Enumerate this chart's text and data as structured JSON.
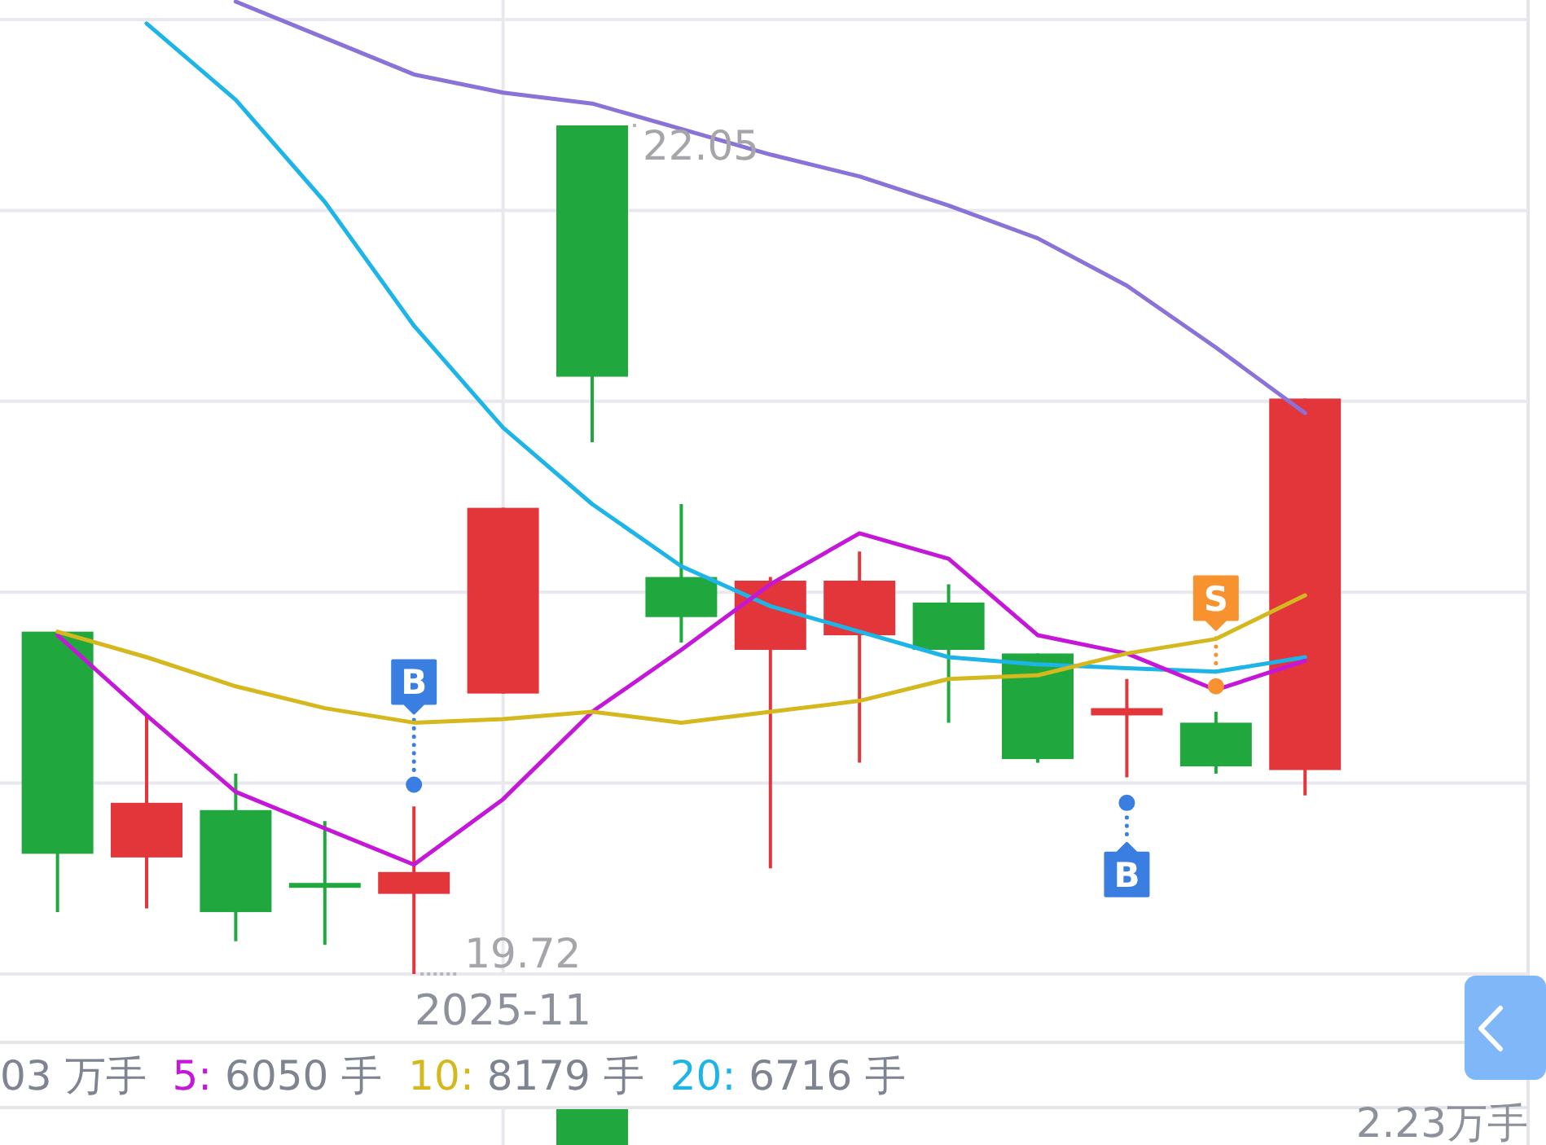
{
  "chart_data": [
    {
      "type": "candlestick",
      "categories": [
        null,
        null,
        null,
        null,
        null,
        "2025-11",
        null,
        null,
        null,
        null,
        null,
        null,
        null,
        null,
        null
      ],
      "ohlc": [
        [
          20.66,
          20.66,
          19.89,
          20.05
        ],
        [
          20.04,
          20.43,
          19.9,
          20.19
        ],
        [
          20.17,
          20.27,
          19.81,
          19.89
        ],
        [
          19.97,
          20.14,
          19.8,
          19.96
        ],
        [
          19.94,
          20.18,
          19.72,
          20.0
        ],
        [
          20.49,
          21.0,
          20.49,
          21.0
        ],
        [
          22.05,
          22.05,
          21.18,
          21.36
        ],
        [
          20.81,
          21.01,
          20.63,
          20.7
        ],
        [
          20.61,
          20.81,
          20.01,
          20.8
        ],
        [
          20.65,
          20.88,
          20.3,
          20.8
        ],
        [
          20.74,
          20.79,
          20.41,
          20.61
        ],
        [
          20.6,
          20.6,
          20.3,
          20.31
        ],
        [
          20.43,
          20.53,
          20.26,
          20.45
        ],
        [
          20.41,
          20.44,
          20.27,
          20.29
        ],
        [
          20.28,
          21.3,
          20.21,
          21.3
        ]
      ],
      "colors": [
        "#20a83f",
        "#e3363a",
        "#20a83f",
        "#20a83f",
        "#e3363a",
        "#e3363a",
        "#20a83f",
        "#20a83f",
        "#e3363a",
        "#e3363a",
        "#20a83f",
        "#20a83f",
        "#e3363a",
        "#20a83f",
        "#e3363a"
      ],
      "series": [
        {
          "type": "line",
          "color": "#8a72d8",
          "values": [
            null,
            null,
            22.39,
            22.29,
            22.19,
            22.14,
            22.11,
            22.04,
            21.97,
            21.91,
            21.83,
            21.74,
            21.61,
            21.44,
            21.26
          ]
        },
        {
          "type": "line",
          "color": "#1db4e8",
          "values": [
            null,
            22.33,
            22.12,
            21.84,
            21.5,
            21.22,
            21.01,
            20.84,
            20.73,
            20.66,
            20.59,
            20.57,
            20.56,
            20.55,
            20.59
          ]
        },
        {
          "type": "line",
          "color": "#c517d8",
          "values": [
            20.65,
            20.43,
            20.22,
            20.12,
            20.02,
            20.2,
            20.44,
            20.61,
            20.79,
            20.93,
            20.86,
            20.65,
            20.6,
            20.5,
            20.58
          ]
        },
        {
          "type": "line",
          "color": "#d5b81e",
          "values": [
            20.66,
            20.59,
            20.51,
            20.45,
            20.41,
            20.42,
            20.44,
            20.41,
            20.44,
            20.47,
            20.53,
            20.54,
            20.6,
            20.64,
            20.76
          ]
        },
        {
          "type": "scatter",
          "marker": "circle",
          "color": "#3b7ee2",
          "values": [
            null,
            null,
            null,
            null,
            20.24,
            null,
            null,
            null,
            null,
            null,
            null,
            null,
            20.19,
            null,
            null
          ],
          "value_labels": [
            null,
            null,
            null,
            null,
            "B",
            null,
            null,
            null,
            null,
            null,
            null,
            null,
            "B",
            null,
            null
          ]
        },
        {
          "type": "scatter",
          "marker": "circle",
          "color": "#f8922f",
          "values": [
            null,
            null,
            null,
            null,
            null,
            null,
            null,
            null,
            null,
            null,
            null,
            null,
            null,
            20.51,
            null
          ],
          "value_labels": [
            null,
            null,
            null,
            null,
            null,
            null,
            null,
            null,
            null,
            null,
            null,
            null,
            null,
            "S",
            null
          ]
        }
      ],
      "annotations": [
        "22.05",
        "19.72"
      ],
      "grid": true,
      "tick_labels": "x"
    },
    {
      "type": "other",
      "title": "03 万手",
      "series": [
        {
          "name": "5: 6050 手",
          "color": "#c517d8"
        },
        {
          "name": "10: 8179 手",
          "color": "#d5b81e"
        },
        {
          "name": "20: 6716 手",
          "color": "#1db4e8"
        }
      ],
      "annotations": [
        "2.23万手"
      ]
    }
  ]
}
